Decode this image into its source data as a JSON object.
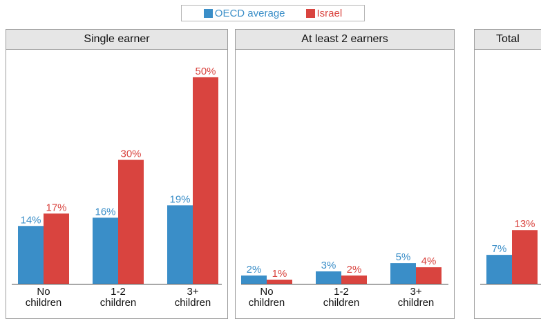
{
  "legend": [
    {
      "name": "OECD average",
      "color": "#3a8ec8"
    },
    {
      "name": "Israel",
      "color": "#d9443f"
    }
  ],
  "colors": {
    "oecd": "#3a8ec8",
    "israel": "#d9443f"
  },
  "chart_data": [
    {
      "type": "bar",
      "title": "Single earner",
      "categories": [
        "No\nchildren",
        "1-2\nchildren",
        "3+\nchildren"
      ],
      "series": [
        {
          "name": "OECD average",
          "values": [
            14,
            16,
            19
          ],
          "labels": [
            "14%",
            "16%",
            "19%"
          ]
        },
        {
          "name": "Israel",
          "values": [
            17,
            30,
            50
          ],
          "labels": [
            "17%",
            "30%",
            "50%"
          ]
        }
      ],
      "ylim": [
        0,
        55
      ]
    },
    {
      "type": "bar",
      "title": "At least 2 earners",
      "categories": [
        "No\nchildren",
        "1-2\nchildren",
        "3+\nchildren"
      ],
      "series": [
        {
          "name": "OECD average",
          "values": [
            2,
            3,
            5
          ],
          "labels": [
            "2%",
            "3%",
            "5%"
          ]
        },
        {
          "name": "Israel",
          "values": [
            1,
            2,
            4
          ],
          "labels": [
            "1%",
            "2%",
            "4%"
          ]
        }
      ],
      "ylim": [
        0,
        55
      ]
    },
    {
      "type": "bar",
      "title": "Total",
      "categories": [
        ""
      ],
      "series": [
        {
          "name": "OECD average",
          "values": [
            7
          ],
          "labels": [
            "7%"
          ]
        },
        {
          "name": "Israel",
          "values": [
            13
          ],
          "labels": [
            "13%"
          ]
        }
      ],
      "ylim": [
        0,
        55
      ]
    }
  ]
}
